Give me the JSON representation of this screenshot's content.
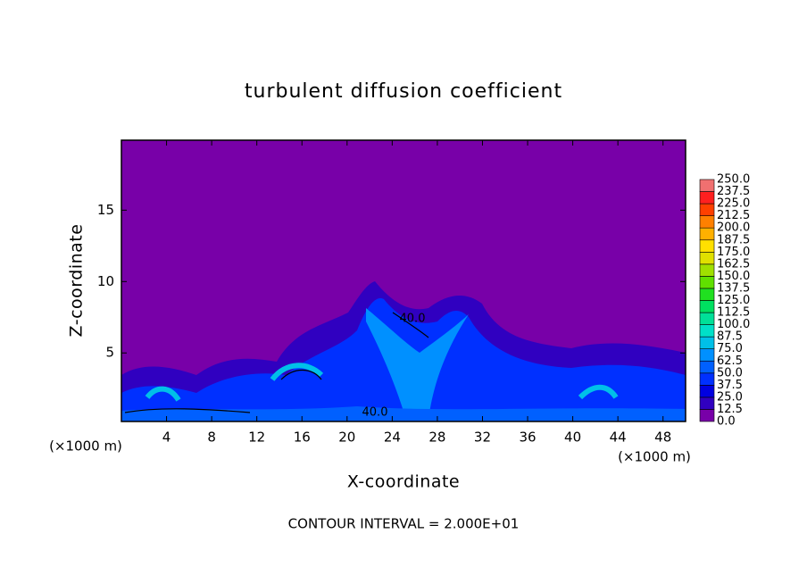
{
  "chart_data": {
    "type": "contour",
    "title": "turbulent diffusion coefficient",
    "x_label": "X-coordinate",
    "y_label": "Z-coordinate",
    "x_unit": "(×1000 m)",
    "x_unit_right": "(×1000 m)",
    "footer": "CONTOUR INTERVAL = 2.000E+01",
    "annotations": [
      "40.0",
      "40.0"
    ],
    "xlim": [
      0,
      50
    ],
    "xticks": [
      4,
      8,
      12,
      16,
      20,
      24,
      28,
      32,
      36,
      40,
      44,
      48
    ],
    "ylim": [
      0.2,
      19.9
    ],
    "yticks": [
      5,
      10,
      15
    ],
    "colorbar": {
      "levels": [
        {
          "value": 0,
          "label": "0.0"
        },
        {
          "value": 12.5,
          "label": "12.5"
        },
        {
          "value": 25,
          "label": "25.0"
        },
        {
          "value": 37.5,
          "label": "37.5"
        },
        {
          "value": 50,
          "label": "50.0"
        },
        {
          "value": 62.5,
          "label": "62.5"
        },
        {
          "value": 75,
          "label": "75.0"
        },
        {
          "value": 87.5,
          "label": "87.5"
        },
        {
          "value": 100,
          "label": "100.0"
        },
        {
          "value": 112.5,
          "label": "112.5"
        },
        {
          "value": 125,
          "label": "125.0"
        },
        {
          "value": 137.5,
          "label": "137.5"
        },
        {
          "value": 150,
          "label": "150.0"
        },
        {
          "value": 162.5,
          "label": "162.5"
        },
        {
          "value": 175,
          "label": "175.0"
        },
        {
          "value": 187.5,
          "label": "187.5"
        },
        {
          "value": 200,
          "label": "200.0"
        },
        {
          "value": 212.5,
          "label": "212.5"
        },
        {
          "value": 225,
          "label": "225.0"
        },
        {
          "value": 237.5,
          "label": "237.5"
        },
        {
          "value": 250,
          "label": "250.0"
        }
      ],
      "colors": [
        "#7800a8",
        "#3000c0",
        "#0000e0",
        "#0030ff",
        "#0060ff",
        "#0090ff",
        "#00c0e8",
        "#00e0c8",
        "#00e098",
        "#00e060",
        "#20e020",
        "#60e000",
        "#a0e000",
        "#e0e000",
        "#ffe000",
        "#ffb000",
        "#ff8000",
        "#ff4000",
        "#ff2020",
        "#f07070"
      ]
    }
  }
}
